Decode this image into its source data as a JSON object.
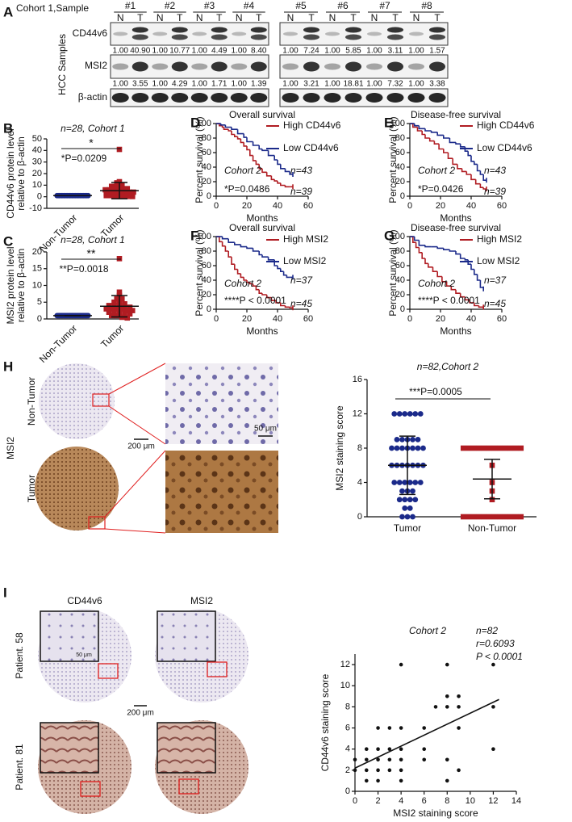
{
  "blot": {
    "letter": "A",
    "cohort_label": "Cohort 1,Sample",
    "samples": [
      "#1",
      "#2",
      "#3",
      "#4",
      "#5",
      "#6",
      "#7",
      "#8"
    ],
    "lane_labels": [
      "N",
      "T"
    ],
    "side_label": "HCC Samples",
    "rows": [
      {
        "name": "CD44v6",
        "quant": [
          "1.00",
          "40.90",
          "1.00",
          "10.77",
          "1.00",
          "4.49",
          "1.00",
          "8.40",
          "1.00",
          "7.24",
          "1.00",
          "5.85",
          "1.00",
          "3.11",
          "1.00",
          "1.57"
        ]
      },
      {
        "name": "MSI2",
        "quant": [
          "1.00",
          "3.55",
          "1.00",
          "4.29",
          "1.00",
          "1.71",
          "1.00",
          "1.39",
          "1.00",
          "3.21",
          "1.00",
          "18.81",
          "1.00",
          "7.32",
          "1.00",
          "3.38"
        ]
      },
      {
        "name": "β-actin"
      }
    ]
  },
  "chart_data": [
    {
      "type": "dot",
      "letter": "B",
      "title": "n=28, Cohort 1",
      "ylabel": [
        "CD44v6 protein level",
        "relative to  β-actin"
      ],
      "ylim": [
        -10,
        50
      ],
      "yticks": [
        -10,
        0,
        10,
        20,
        30,
        40,
        50
      ],
      "categories": [
        "Non-Tumor",
        "Tumor"
      ],
      "groups": [
        {
          "color": "#1b2a8a",
          "marker": "circle",
          "values": [
            1,
            1,
            1,
            1,
            1,
            1,
            1,
            1,
            1,
            1,
            1,
            1,
            1,
            1,
            1,
            1,
            1,
            1,
            1,
            1,
            1,
            1,
            1,
            1,
            1,
            1,
            1,
            1
          ],
          "mean": 1,
          "sd": 0
        },
        {
          "color": "#b01c22",
          "marker": "square",
          "values": [
            40.9,
            13,
            12,
            10,
            9,
            8,
            7,
            7,
            6,
            6,
            5,
            5,
            5,
            4,
            4,
            4,
            3,
            3,
            3,
            2,
            2,
            2,
            1,
            1,
            1,
            0.5,
            0.3,
            0.2
          ],
          "mean": 5.3,
          "sd": 7
        }
      ],
      "stars": "*",
      "pvalue": "*P=0.0209"
    },
    {
      "type": "dot",
      "letter": "C",
      "title": "n=28, Cohort 1",
      "ylabel": [
        "MSI2 protein level",
        "relative to β-actin"
      ],
      "ylim": [
        0,
        20
      ],
      "yticks": [
        0,
        5,
        10,
        15,
        20
      ],
      "categories": [
        "Non-Tumor",
        "Tumor"
      ],
      "groups": [
        {
          "color": "#1b2a8a",
          "marker": "circle",
          "values": [
            1,
            1,
            1,
            1,
            1,
            1,
            1,
            1,
            1,
            1,
            1,
            1,
            1,
            1,
            1,
            1,
            1,
            1,
            1,
            1,
            1,
            1,
            1,
            1,
            1,
            1,
            1,
            1
          ],
          "mean": 1,
          "sd": 0
        },
        {
          "color": "#b01c22",
          "marker": "square",
          "values": [
            18,
            8,
            7,
            6,
            6,
            5,
            5,
            4.5,
            4,
            4,
            4,
            3.5,
            3.5,
            3,
            3,
            3,
            3,
            2.5,
            2.5,
            2,
            2,
            2,
            1.5,
            1.5,
            1,
            1,
            0.5,
            0.3
          ],
          "mean": 3.8,
          "sd": 3.2
        }
      ],
      "stars": "**",
      "pvalue": "**P=0.0018"
    },
    {
      "type": "km",
      "letter": "D",
      "title": "Overall survival",
      "ylabel": "Percent survival (%)",
      "xlabel": "Months",
      "xlim": [
        0,
        60
      ],
      "xticks": [
        0,
        20,
        40,
        60
      ],
      "ylim": [
        0,
        100
      ],
      "yticks": [
        0,
        20,
        40,
        60,
        80,
        100
      ],
      "series": [
        {
          "name": "High CD44v6",
          "color": "#b01c22",
          "n_label": "n=39",
          "x": [
            0,
            2,
            4,
            5,
            8,
            10,
            12,
            14,
            16,
            18,
            20,
            22,
            24,
            26,
            28,
            30,
            33,
            36,
            38,
            40,
            42,
            45,
            48,
            50
          ],
          "values": [
            100,
            97,
            95,
            92,
            90,
            85,
            82,
            79,
            74,
            69,
            64,
            56,
            49,
            44,
            38,
            33,
            28,
            23,
            21,
            18,
            15,
            13,
            13,
            13
          ]
        },
        {
          "name": "Low CD44v6",
          "color": "#1b2a8a",
          "n_label": "n=43",
          "x": [
            0,
            3,
            6,
            10,
            14,
            18,
            20,
            24,
            28,
            30,
            34,
            38,
            40,
            42,
            45,
            48,
            50
          ],
          "values": [
            100,
            98,
            95,
            92,
            86,
            81,
            75,
            70,
            65,
            63,
            56,
            50,
            44,
            38,
            34,
            30,
            30
          ]
        }
      ],
      "cohort": "Cohort 2",
      "pvalue": "*P=0.0486"
    },
    {
      "type": "km",
      "letter": "E",
      "title": "Disease-free survival",
      "ylabel": "Percent survival (%)",
      "xlabel": "Months",
      "xlim": [
        0,
        60
      ],
      "xticks": [
        0,
        20,
        40,
        60
      ],
      "ylim": [
        0,
        100
      ],
      "yticks": [
        0,
        20,
        40,
        60,
        80,
        100
      ],
      "series": [
        {
          "name": "High CD44v6",
          "color": "#b01c22",
          "n_label": "n=39",
          "x": [
            0,
            2,
            5,
            8,
            10,
            13,
            16,
            19,
            22,
            25,
            28,
            31,
            34,
            37,
            40,
            43,
            46,
            48,
            50
          ],
          "values": [
            100,
            95,
            90,
            85,
            80,
            76,
            72,
            65,
            60,
            52,
            44,
            38,
            34,
            30,
            23,
            17,
            12,
            10,
            10
          ]
        },
        {
          "name": "Low CD44v6",
          "color": "#1b2a8a",
          "n_label": "n=43",
          "x": [
            0,
            3,
            6,
            10,
            14,
            18,
            22,
            26,
            30,
            33,
            36,
            38,
            40,
            42,
            44,
            46,
            48,
            50
          ],
          "values": [
            100,
            97,
            93,
            90,
            88,
            84,
            80,
            74,
            72,
            68,
            62,
            56,
            48,
            44,
            35,
            30,
            22,
            22
          ]
        }
      ],
      "cohort": "Cohort 2",
      "pvalue": "*P=0.0426"
    },
    {
      "type": "km",
      "letter": "F",
      "title": "Overall survival",
      "ylabel": "Percent survival (%)",
      "xlabel": "Months",
      "xlim": [
        0,
        60
      ],
      "xticks": [
        0,
        20,
        40,
        60
      ],
      "ylim": [
        0,
        100
      ],
      "yticks": [
        0,
        20,
        40,
        60,
        80,
        100
      ],
      "series": [
        {
          "name": "High MSI2",
          "color": "#b01c22",
          "n_label": "n=45",
          "x": [
            0,
            2,
            4,
            6,
            8,
            10,
            12,
            14,
            16,
            18,
            20,
            22,
            24,
            26,
            28,
            30,
            33,
            36,
            39,
            42,
            45,
            48,
            50
          ],
          "values": [
            100,
            93,
            87,
            80,
            72,
            62,
            55,
            49,
            44,
            40,
            37,
            35,
            32,
            27,
            22,
            20,
            16,
            12,
            9,
            5,
            3,
            2,
            2
          ]
        },
        {
          "name": "Low MSI2",
          "color": "#1b2a8a",
          "n_label": "n=37",
          "x": [
            0,
            4,
            8,
            12,
            16,
            20,
            24,
            28,
            30,
            34,
            38,
            40,
            42,
            44,
            46,
            48,
            50
          ],
          "values": [
            100,
            97,
            92,
            89,
            86,
            84,
            80,
            75,
            72,
            68,
            60,
            56,
            52,
            47,
            44,
            44,
            44
          ]
        }
      ],
      "cohort": "Cohort 2",
      "pvalue": "****P < 0.0001"
    },
    {
      "type": "km",
      "letter": "G",
      "title": "Disease-free survival",
      "ylabel": "Percent survival (%)",
      "xlabel": "Months",
      "xlim": [
        0,
        60
      ],
      "xticks": [
        0,
        20,
        40,
        60
      ],
      "ylim": [
        0,
        100
      ],
      "yticks": [
        0,
        20,
        40,
        60,
        80,
        100
      ],
      "series": [
        {
          "name": "High MSI2",
          "color": "#b01c22",
          "n_label": "n=45",
          "x": [
            0,
            2,
            4,
            6,
            8,
            10,
            12,
            15,
            18,
            21,
            24,
            27,
            30,
            33,
            36,
            39,
            42,
            45,
            48
          ],
          "values": [
            100,
            92,
            85,
            78,
            70,
            63,
            58,
            52,
            45,
            38,
            32,
            27,
            22,
            17,
            13,
            9,
            5,
            3,
            3
          ]
        },
        {
          "name": "Low MSI2",
          "color": "#1b2a8a",
          "n_label": "n=37",
          "x": [
            0,
            3,
            6,
            10,
            14,
            18,
            22,
            26,
            30,
            33,
            36,
            38,
            40,
            42,
            44,
            46,
            48
          ],
          "values": [
            100,
            95,
            88,
            86,
            86,
            84,
            82,
            80,
            76,
            70,
            68,
            62,
            55,
            48,
            40,
            30,
            28
          ]
        }
      ],
      "cohort": "Cohort 2",
      "pvalue": "****P < 0.0001"
    },
    {
      "type": "dot",
      "title": "n=82,Cohort 2",
      "ylabel": [
        "MSI2 staining score"
      ],
      "ylim": [
        0,
        16
      ],
      "yticks": [
        0,
        4,
        8,
        12,
        16
      ],
      "categories": [
        "Tumor",
        "Non-Tumor"
      ],
      "groups": [
        {
          "color": "#1b2a8a",
          "marker": "circle",
          "values": [
            12,
            12,
            12,
            12,
            12,
            12,
            9,
            9,
            9,
            9,
            9,
            8,
            8,
            8,
            8,
            8,
            8,
            8,
            6,
            6,
            6,
            6,
            6,
            6,
            6,
            4,
            4,
            4,
            4,
            4,
            4,
            3,
            3,
            3,
            2,
            2,
            2,
            2,
            1,
            1,
            0,
            0,
            0
          ],
          "mean": 6,
          "sd": 3.4
        },
        {
          "color": "#b01c22",
          "marker": "square",
          "values": [
            8,
            8,
            8,
            8,
            8,
            8,
            8,
            8,
            8,
            8,
            8,
            8,
            6,
            4,
            3,
            2,
            0,
            0,
            0,
            0,
            0,
            0,
            0,
            0,
            0,
            0,
            0,
            0
          ],
          "mean": 4.4,
          "sd": 2.3
        }
      ],
      "pvalue": "***P=0.0005"
    },
    {
      "type": "scatter",
      "title": "Cohort 2",
      "stats": [
        "n=82",
        "r=0.6093",
        "P < 0.0001"
      ],
      "xlabel": "MSI2 staining score",
      "ylabel": "CD44v6 staining score",
      "xlim": [
        0,
        14
      ],
      "xticks": [
        0,
        2,
        4,
        6,
        8,
        10,
        12,
        14
      ],
      "ylim": [
        0,
        13
      ],
      "yticks": [
        0,
        2,
        4,
        6,
        8,
        10,
        12
      ],
      "x": [
        0,
        0,
        1,
        1,
        1,
        1,
        2,
        2,
        2,
        2,
        2,
        3,
        3,
        3,
        3,
        4,
        4,
        4,
        4,
        4,
        4,
        6,
        6,
        6,
        7,
        8,
        8,
        8,
        8,
        8,
        9,
        9,
        9,
        9,
        12,
        12,
        12
      ],
      "values": [
        3,
        2,
        4,
        3,
        1,
        2,
        1,
        2,
        3,
        4,
        6,
        2,
        3,
        4,
        6,
        1,
        2,
        3,
        4,
        6,
        12,
        4,
        3,
        6,
        8,
        1,
        3,
        8,
        9,
        12,
        2,
        6,
        8,
        9,
        4,
        8,
        12
      ],
      "fit_x": [
        0,
        12.5
      ],
      "fit_y": [
        2.2,
        8.7
      ]
    }
  ],
  "ihc_h": {
    "letter": "H",
    "marker": "MSI2",
    "rows": [
      "Non-Tumor",
      "Tumor"
    ],
    "scale_large": "200 μm",
    "scale_small": "50 μm"
  },
  "ihc_i": {
    "letter": "I",
    "columns": [
      "CD44v6",
      "MSI2"
    ],
    "rows": [
      "Patient. 58",
      "Patient. 81"
    ],
    "scale_large": "200 μm",
    "scale_small": "50 μm"
  }
}
